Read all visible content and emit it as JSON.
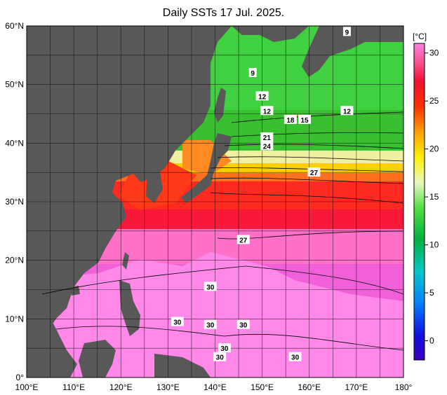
{
  "title": "Daily SSTs 17 Jul. 2025.",
  "unit_label": "[°C]",
  "axes": {
    "lon_ticks": [
      "100°E",
      "110°E",
      "120°E",
      "130°E",
      "140°E",
      "150°E",
      "160°E",
      "170°E",
      "180°"
    ],
    "lat_ticks": [
      "0°",
      "10°N",
      "20°N",
      "30°N",
      "40°N",
      "50°N",
      "60°N"
    ],
    "lon_range": [
      100,
      180
    ],
    "lat_range": [
      0,
      60
    ]
  },
  "colorbar": {
    "ticks": [
      "0",
      "5",
      "10",
      "15",
      "20",
      "25",
      "30"
    ],
    "range": [
      -2,
      31
    ]
  },
  "contour_labels": [
    {
      "text": "9",
      "lon": 168,
      "lat": 59
    },
    {
      "text": "9",
      "lon": 148,
      "lat": 52
    },
    {
      "text": "12",
      "lon": 150,
      "lat": 48
    },
    {
      "text": "12",
      "lon": 151,
      "lat": 45.5
    },
    {
      "text": "12",
      "lon": 168,
      "lat": 45.5
    },
    {
      "text": "18",
      "lon": 156,
      "lat": 44
    },
    {
      "text": "15",
      "lon": 159,
      "lat": 44
    },
    {
      "text": "21",
      "lon": 151,
      "lat": 41
    },
    {
      "text": "24",
      "lon": 151,
      "lat": 39.5
    },
    {
      "text": "27",
      "lon": 161,
      "lat": 35
    },
    {
      "text": "27",
      "lon": 146,
      "lat": 23.5
    },
    {
      "text": "30",
      "lon": 139,
      "lat": 15.5
    },
    {
      "text": "30",
      "lon": 132,
      "lat": 9.5
    },
    {
      "text": "30",
      "lon": 139,
      "lat": 9
    },
    {
      "text": "30",
      "lon": 146,
      "lat": 9
    },
    {
      "text": "30",
      "lon": 142,
      "lat": 5
    },
    {
      "text": "30",
      "lon": 141,
      "lat": 3.5
    },
    {
      "text": "30",
      "lon": 157,
      "lat": 3.5
    }
  ],
  "colors": {
    "land": "#585858",
    "background": "#ffffff"
  }
}
